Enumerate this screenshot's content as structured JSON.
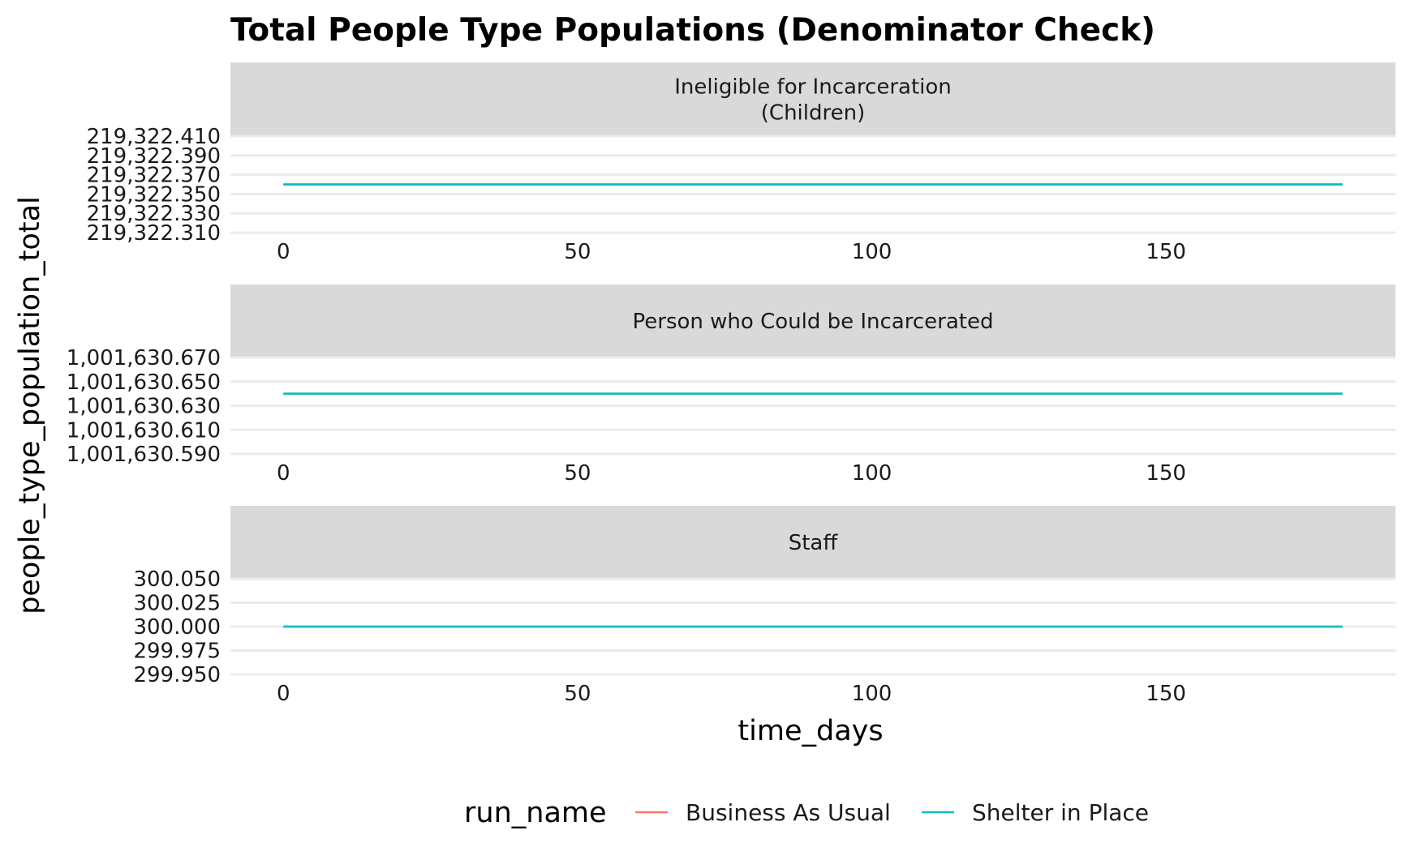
{
  "title": "Total People Type Populations (Denominator Check)",
  "chart_data": {
    "type": "line",
    "title": "Total People Type Populations (Denominator Check)",
    "xlabel": "time_days",
    "ylabel": "people_type_population_total",
    "grid": true,
    "legend_position": "bottom",
    "legend_title": "run_name",
    "series_colors": {
      "Business As Usual": "#f8766d",
      "Shelter in Place": "#00bfc4"
    },
    "x_ticks": [
      0,
      50,
      100,
      150
    ],
    "xlim": [
      -9,
      189
    ],
    "facets": [
      {
        "strip": [
          "Ineligible for Incarceration",
          "(Children)"
        ],
        "y_ticks": [
          "219,322.310",
          "219,322.330",
          "219,322.350",
          "219,322.370",
          "219,322.390",
          "219,322.410"
        ],
        "y_tick_values": [
          219322.31,
          219322.33,
          219322.35,
          219322.37,
          219322.39,
          219322.41
        ],
        "ylim": [
          219322.31,
          219322.41
        ],
        "series": [
          {
            "name": "Business As Usual",
            "x": [
              0,
              180
            ],
            "y": [
              219322.36,
              219322.36
            ]
          },
          {
            "name": "Shelter in Place",
            "x": [
              0,
              180
            ],
            "y": [
              219322.36,
              219322.36
            ]
          }
        ]
      },
      {
        "strip": [
          "Person who Could be Incarcerated"
        ],
        "y_ticks": [
          "1,001,630.590",
          "1,001,630.610",
          "1,001,630.630",
          "1,001,630.650",
          "1,001,630.670"
        ],
        "y_tick_values": [
          1001630.59,
          1001630.61,
          1001630.63,
          1001630.65,
          1001630.67
        ],
        "ylim": [
          1001630.59,
          1001630.67
        ],
        "series": [
          {
            "name": "Business As Usual",
            "x": [
              0,
              180
            ],
            "y": [
              1001630.64,
              1001630.64
            ]
          },
          {
            "name": "Shelter in Place",
            "x": [
              0,
              180
            ],
            "y": [
              1001630.64,
              1001630.64
            ]
          }
        ]
      },
      {
        "strip": [
          "Staff"
        ],
        "y_ticks": [
          "299.950",
          "299.975",
          "300.000",
          "300.025",
          "300.050"
        ],
        "y_tick_values": [
          299.95,
          299.975,
          300.0,
          300.025,
          300.05
        ],
        "ylim": [
          299.95,
          300.05
        ],
        "series": [
          {
            "name": "Business As Usual",
            "x": [
              0,
              180
            ],
            "y": [
              300.0,
              300.0
            ]
          },
          {
            "name": "Shelter in Place",
            "x": [
              0,
              180
            ],
            "y": [
              300.0,
              300.0
            ]
          }
        ]
      }
    ]
  }
}
